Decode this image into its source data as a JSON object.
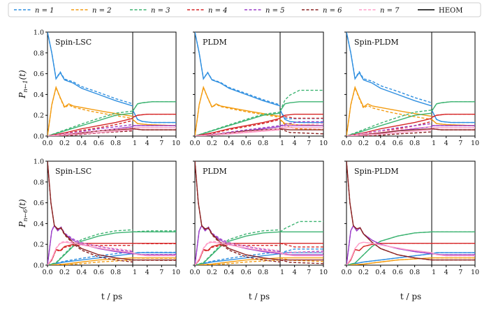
{
  "chart_data": {
    "type": "line",
    "figure": "Population dynamics of a 7-site system; Spin-LSC, PLDM and Spin-PLDM (dashed) compared against HEOM (solid)",
    "legend": {
      "placement": "top",
      "entries": [
        {
          "label": "n = 1",
          "style": "dashed",
          "color": "#2f8fe0"
        },
        {
          "label": "n = 2",
          "style": "dashed",
          "color": "#f39c12"
        },
        {
          "label": "n = 3",
          "style": "dashed",
          "color": "#3cb371"
        },
        {
          "label": "n = 4",
          "style": "dashed",
          "color": "#d62728"
        },
        {
          "label": "n = 5",
          "style": "dashed",
          "color": "#9b3fc8"
        },
        {
          "label": "n = 6",
          "style": "dashed",
          "color": "#8b2323"
        },
        {
          "label": "n = 7",
          "style": "dashed",
          "color": "#ff9ec8"
        },
        {
          "label": "HEOM",
          "style": "solid",
          "color": "#000000"
        }
      ]
    },
    "xlabel": "t / ps",
    "x_ticks_short": [
      "0.0",
      "0.2",
      "0.4",
      "0.6",
      "0.8"
    ],
    "x_ticks_long": [
      "1",
      "4",
      "7",
      "10"
    ],
    "x_short_range": [
      0,
      1
    ],
    "x_long_range": [
      1,
      10
    ],
    "y_ticks": [
      "0.0",
      "0.2",
      "0.4",
      "0.6",
      "0.8",
      "1.0"
    ],
    "ylim": [
      0,
      1
    ],
    "rows": [
      {
        "ylabel": "P_{n←1}(t)",
        "ylabel_base": "P",
        "ylabel_sub": "n←1",
        "ylabel_arg": "(t)"
      },
      {
        "ylabel": "P_{n←6}(t)",
        "ylabel_base": "P",
        "ylabel_sub": "n←6",
        "ylabel_arg": "(t)"
      }
    ],
    "method_titles": [
      "Spin-LSC",
      "PLDM",
      "Spin-PLDM"
    ],
    "series_colors": [
      "#2f8fe0",
      "#f39c12",
      "#3cb371",
      "#d62728",
      "#9b3fc8",
      "#8b2323",
      "#ff9ec8"
    ],
    "heom": [
      {
        "initial_site": 1,
        "short": [
          [
            [
              0,
              1.0
            ],
            [
              0.05,
              0.8
            ],
            [
              0.1,
              0.55
            ],
            [
              0.15,
              0.61
            ],
            [
              0.2,
              0.54
            ],
            [
              0.3,
              0.51
            ],
            [
              0.4,
              0.46
            ],
            [
              0.6,
              0.4
            ],
            [
              0.8,
              0.34
            ],
            [
              1.0,
              0.29
            ]
          ],
          [
            [
              0,
              0
            ],
            [
              0.05,
              0.3
            ],
            [
              0.1,
              0.47
            ],
            [
              0.15,
              0.37
            ],
            [
              0.2,
              0.28
            ],
            [
              0.25,
              0.31
            ],
            [
              0.3,
              0.29
            ],
            [
              0.5,
              0.26
            ],
            [
              0.7,
              0.23
            ],
            [
              1.0,
              0.19
            ]
          ],
          [
            [
              0,
              0
            ],
            [
              0.2,
              0.05
            ],
            [
              0.4,
              0.1
            ],
            [
              0.6,
              0.15
            ],
            [
              0.8,
              0.2
            ],
            [
              1.0,
              0.22
            ]
          ],
          [
            [
              0,
              0
            ],
            [
              0.2,
              0.03
            ],
            [
              0.4,
              0.07
            ],
            [
              0.6,
              0.1
            ],
            [
              0.8,
              0.13
            ],
            [
              1.0,
              0.17
            ]
          ],
          [
            [
              0,
              0
            ],
            [
              0.3,
              0.02
            ],
            [
              0.6,
              0.05
            ],
            [
              0.8,
              0.07
            ],
            [
              1.0,
              0.09
            ]
          ],
          [
            [
              0,
              0
            ],
            [
              0.3,
              0.02
            ],
            [
              0.6,
              0.05
            ],
            [
              1.0,
              0.07
            ]
          ],
          [
            [
              0,
              0
            ],
            [
              0.4,
              0.02
            ],
            [
              0.7,
              0.04
            ],
            [
              1.0,
              0.06
            ]
          ]
        ],
        "long": [
          [
            [
              1,
              0.25
            ],
            [
              2,
              0.16
            ],
            [
              3,
              0.14
            ],
            [
              5,
              0.13
            ],
            [
              10,
              0.13
            ]
          ],
          [
            [
              1,
              0.16
            ],
            [
              2,
              0.12
            ],
            [
              4,
              0.11
            ],
            [
              10,
              0.1
            ]
          ],
          [
            [
              1,
              0.24
            ],
            [
              2,
              0.31
            ],
            [
              3,
              0.32
            ],
            [
              5,
              0.33
            ],
            [
              10,
              0.33
            ]
          ],
          [
            [
              1,
              0.18
            ],
            [
              2,
              0.2
            ],
            [
              4,
              0.21
            ],
            [
              10,
              0.21
            ]
          ],
          [
            [
              1,
              0.1
            ],
            [
              2,
              0.1
            ],
            [
              5,
              0.1
            ],
            [
              10,
              0.1
            ]
          ],
          [
            [
              1,
              0.07
            ],
            [
              3,
              0.06
            ],
            [
              10,
              0.06
            ]
          ],
          [
            [
              1,
              0.08
            ],
            [
              3,
              0.08
            ],
            [
              10,
              0.08
            ]
          ]
        ]
      },
      {
        "initial_site": 6,
        "short": [
          [
            [
              0,
              0
            ],
            [
              0.2,
              0.03
            ],
            [
              0.4,
              0.05
            ],
            [
              0.6,
              0.07
            ],
            [
              0.8,
              0.09
            ],
            [
              1.0,
              0.11
            ]
          ],
          [
            [
              0,
              0
            ],
            [
              0.2,
              0.01
            ],
            [
              0.4,
              0.03
            ],
            [
              0.6,
              0.05
            ],
            [
              0.8,
              0.06
            ],
            [
              1.0,
              0.07
            ]
          ],
          [
            [
              0,
              0
            ],
            [
              0.1,
              0.02
            ],
            [
              0.2,
              0.1
            ],
            [
              0.3,
              0.18
            ],
            [
              0.4,
              0.23
            ],
            [
              0.6,
              0.28
            ],
            [
              0.8,
              0.31
            ],
            [
              1.0,
              0.32
            ]
          ],
          [
            [
              0,
              0
            ],
            [
              0.05,
              0.05
            ],
            [
              0.1,
              0.15
            ],
            [
              0.15,
              0.14
            ],
            [
              0.2,
              0.18
            ],
            [
              0.3,
              0.2
            ],
            [
              0.4,
              0.21
            ],
            [
              0.6,
              0.21
            ],
            [
              1.0,
              0.21
            ]
          ],
          [
            [
              0,
              0
            ],
            [
              0.05,
              0.33
            ],
            [
              0.08,
              0.38
            ],
            [
              0.12,
              0.33
            ],
            [
              0.16,
              0.36
            ],
            [
              0.2,
              0.3
            ],
            [
              0.3,
              0.24
            ],
            [
              0.4,
              0.2
            ],
            [
              0.6,
              0.16
            ],
            [
              0.8,
              0.13
            ],
            [
              1.0,
              0.11
            ]
          ],
          [
            [
              0,
              1.0
            ],
            [
              0.04,
              0.6
            ],
            [
              0.08,
              0.38
            ],
            [
              0.12,
              0.35
            ],
            [
              0.16,
              0.36
            ],
            [
              0.2,
              0.3
            ],
            [
              0.3,
              0.22
            ],
            [
              0.4,
              0.16
            ],
            [
              0.6,
              0.1
            ],
            [
              0.8,
              0.07
            ],
            [
              1.0,
              0.05
            ]
          ],
          [
            [
              0,
              0
            ],
            [
              0.05,
              0.06
            ],
            [
              0.1,
              0.16
            ],
            [
              0.15,
              0.21
            ],
            [
              0.2,
              0.22
            ],
            [
              0.3,
              0.21
            ],
            [
              0.5,
              0.18
            ],
            [
              0.7,
              0.15
            ],
            [
              1.0,
              0.12
            ]
          ]
        ],
        "long": [
          [
            [
              1,
              0.11
            ],
            [
              2,
              0.12
            ],
            [
              4,
              0.12
            ],
            [
              10,
              0.12
            ]
          ],
          [
            [
              1,
              0.07
            ],
            [
              3,
              0.07
            ],
            [
              10,
              0.07
            ]
          ],
          [
            [
              1,
              0.32
            ],
            [
              2,
              0.32
            ],
            [
              5,
              0.32
            ],
            [
              10,
              0.32
            ]
          ],
          [
            [
              1,
              0.21
            ],
            [
              4,
              0.21
            ],
            [
              10,
              0.21
            ]
          ],
          [
            [
              1,
              0.11
            ],
            [
              3,
              0.1
            ],
            [
              10,
              0.1
            ]
          ],
          [
            [
              1,
              0.05
            ],
            [
              3,
              0.05
            ],
            [
              10,
              0.05
            ]
          ],
          [
            [
              1,
              0.12
            ],
            [
              2,
              0.1
            ],
            [
              4,
              0.09
            ],
            [
              10,
              0.09
            ]
          ]
        ]
      }
    ],
    "method_deviation": [
      {
        "short": [
          0.02,
          0.01,
          0.03
        ],
        "long": [
          0.0,
          0.11,
          0.0
        ]
      },
      {
        "short": [
          0.02,
          0.02,
          0.0
        ],
        "long": [
          0.01,
          0.1,
          0.0
        ]
      }
    ]
  }
}
